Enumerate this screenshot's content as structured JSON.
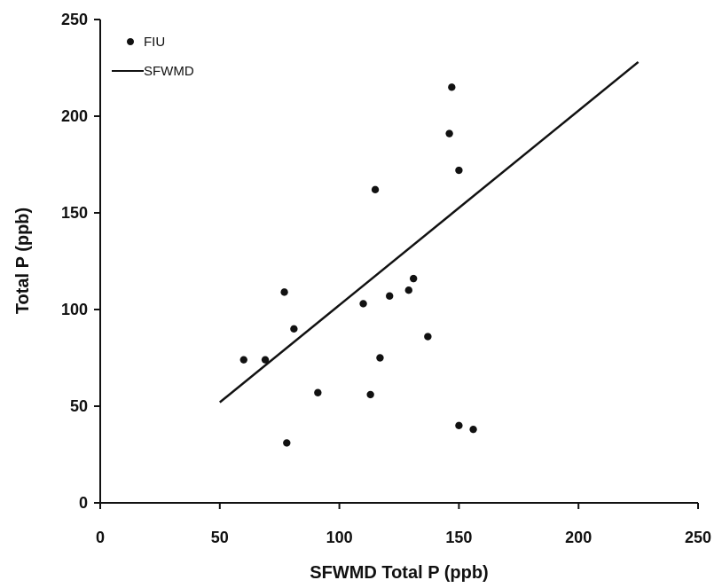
{
  "chart_data": {
    "type": "scatter",
    "title": "",
    "xlabel": "SFWMD Total P (ppb)",
    "ylabel": "Total P (ppb)",
    "xlim": [
      0,
      250
    ],
    "ylim": [
      0,
      250
    ],
    "xticks": [
      "0",
      "50",
      "100",
      "150",
      "200",
      "250"
    ],
    "yticks": [
      "0",
      "50",
      "100",
      "150",
      "200",
      "250"
    ],
    "grid": false,
    "legend_position": "top-left",
    "series": [
      {
        "name": "FIU",
        "kind": "scatter",
        "x": [
          60,
          69,
          77,
          78,
          81,
          91,
          110,
          113,
          115,
          117,
          121,
          129,
          131,
          137,
          146,
          147,
          150,
          150,
          156
        ],
        "y": [
          74,
          74,
          109,
          31,
          90,
          57,
          103,
          56,
          162,
          75,
          107,
          110,
          116,
          86,
          191,
          215,
          172,
          40,
          38
        ]
      },
      {
        "name": "SFWMD",
        "kind": "line",
        "x": [
          50,
          225
        ],
        "y": [
          52,
          228
        ]
      }
    ]
  },
  "colors": {
    "ink": "#111111",
    "background": "#ffffff"
  }
}
